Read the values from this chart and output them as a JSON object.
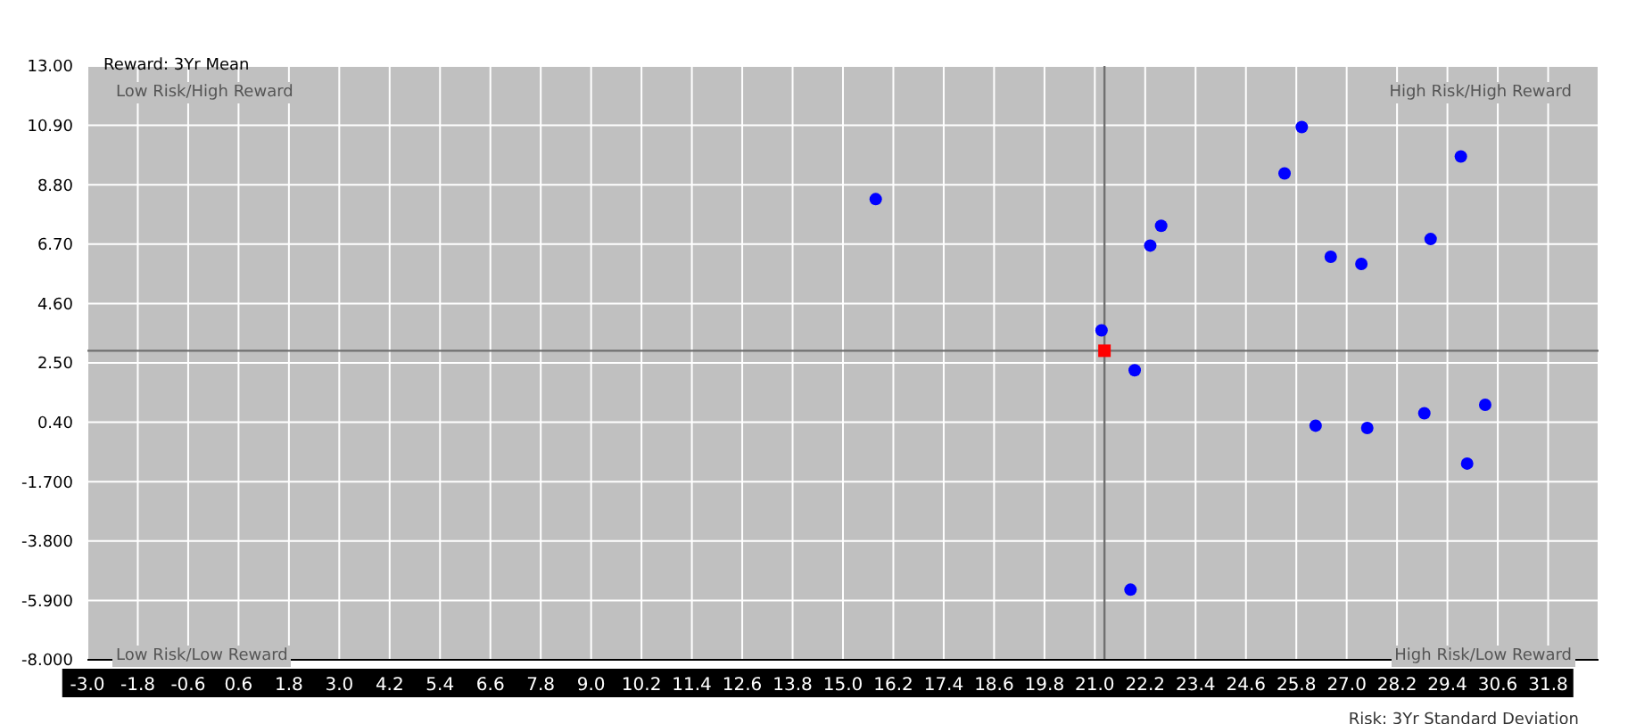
{
  "chart_data": {
    "type": "scatter",
    "xlabel": "Risk: 3Yr Standard Deviation",
    "ylabel": "Reward: 3Yr Mean",
    "annotations": [
      "Low Risk/High Reward",
      "High Risk/High Reward",
      "Low Risk/Low Reward",
      "High Risk/Low Reward"
    ],
    "xlim": [
      -3.0,
      33.0
    ],
    "xticks": [
      {
        "value": -3.0,
        "label": "-3.0"
      },
      {
        "value": -1.8,
        "label": "-1.8"
      },
      {
        "value": -0.6,
        "label": "-0.6"
      },
      {
        "value": 0.6,
        "label": "0.6"
      },
      {
        "value": 1.8,
        "label": "1.8"
      },
      {
        "value": 3.0,
        "label": "3.0"
      },
      {
        "value": 4.2,
        "label": "4.2"
      },
      {
        "value": 5.4,
        "label": "5.4"
      },
      {
        "value": 6.6,
        "label": "6.6"
      },
      {
        "value": 7.8,
        "label": "7.8"
      },
      {
        "value": 9.0,
        "label": "9.0"
      },
      {
        "value": 10.2,
        "label": "10.2"
      },
      {
        "value": 11.4,
        "label": "11.4"
      },
      {
        "value": 12.6,
        "label": "12.6"
      },
      {
        "value": 13.8,
        "label": "13.8"
      },
      {
        "value": 15.0,
        "label": "15.0"
      },
      {
        "value": 16.2,
        "label": "16.2"
      },
      {
        "value": 17.4,
        "label": "17.4"
      },
      {
        "value": 18.6,
        "label": "18.6"
      },
      {
        "value": 19.8,
        "label": "19.8"
      },
      {
        "value": 21.0,
        "label": "21.0"
      },
      {
        "value": 22.2,
        "label": "22.2"
      },
      {
        "value": 23.4,
        "label": "23.4"
      },
      {
        "value": 24.6,
        "label": "24.6"
      },
      {
        "value": 25.8,
        "label": "25.8"
      },
      {
        "value": 27.0,
        "label": "27.0"
      },
      {
        "value": 28.2,
        "label": "28.2"
      },
      {
        "value": 29.4,
        "label": "29.4"
      },
      {
        "value": 30.6,
        "label": "30.6"
      },
      {
        "value": 31.8,
        "label": "31.8"
      }
    ],
    "ylim": [
      -8.0,
      13.0
    ],
    "yticks": [
      {
        "value": 13.0,
        "label": "13.00"
      },
      {
        "value": 10.9,
        "label": "10.90"
      },
      {
        "value": 8.8,
        "label": "8.80"
      },
      {
        "value": 6.7,
        "label": "6.70"
      },
      {
        "value": 4.6,
        "label": "4.60"
      },
      {
        "value": 2.5,
        "label": "2.50"
      },
      {
        "value": 0.4,
        "label": "0.40"
      },
      {
        "value": -1.7,
        "label": "-1.700"
      },
      {
        "value": -3.8,
        "label": "-3.800"
      },
      {
        "value": -5.9,
        "label": "-5.900"
      },
      {
        "value": -8.0,
        "label": "-8.000"
      }
    ],
    "grid": true,
    "marker": "circle",
    "ref_lines": [
      {
        "axis": "x",
        "value": 21.23,
        "color": "#707070"
      },
      {
        "axis": "y",
        "value": 2.93,
        "color": "#707070"
      }
    ],
    "series": [
      {
        "color": "#0000ff",
        "x": [
          15.78,
          21.16,
          21.95,
          22.32,
          22.58,
          25.52,
          25.93,
          26.62,
          27.35,
          29.0,
          29.72,
          21.85,
          26.26,
          27.49,
          28.85,
          30.3,
          29.87
        ],
        "values": [
          8.29,
          3.65,
          2.24,
          6.65,
          7.35,
          9.2,
          10.84,
          6.25,
          6.0,
          6.88,
          9.8,
          -5.52,
          0.28,
          0.2,
          0.72,
          1.02,
          -1.06
        ]
      },
      {
        "color": "#ff0000",
        "marker": "square",
        "x": [
          21.23
        ],
        "values": [
          2.93
        ]
      }
    ]
  }
}
